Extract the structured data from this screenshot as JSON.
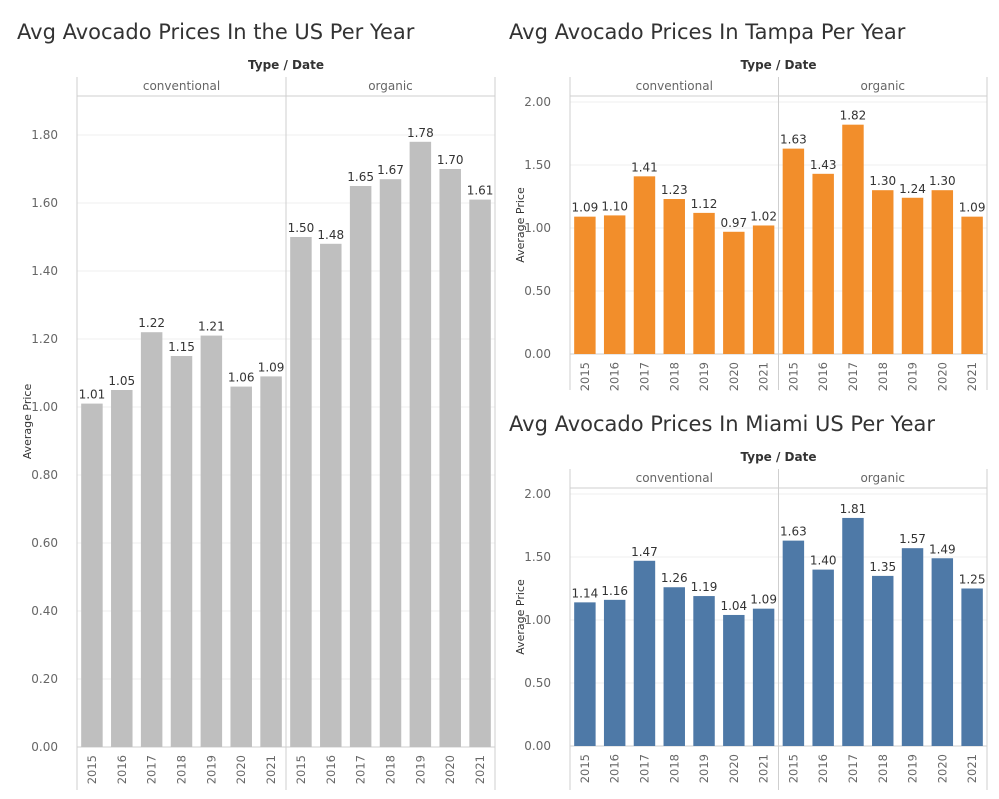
{
  "chart_data": [
    {
      "type": "bar",
      "title": "Avg Avocado Prices In the US Per Year",
      "header_label": "Type / Date",
      "ylabel": "Average Price",
      "ylim": [
        0,
        2.0
      ],
      "yticks": [
        "0.00",
        "0.20",
        "0.40",
        "0.60",
        "0.80",
        "1.00",
        "1.20",
        "1.40",
        "1.60",
        "1.80"
      ],
      "color": "#bfbfbf",
      "groups": [
        {
          "name": "conventional",
          "categories": [
            "2015",
            "2016",
            "2017",
            "2018",
            "2019",
            "2020",
            "2021"
          ],
          "values": [
            1.01,
            1.05,
            1.22,
            1.15,
            1.21,
            1.06,
            1.09
          ],
          "labels": [
            "1.01",
            "1.05",
            "1.22",
            "1.15",
            "1.21",
            "1.06",
            "1.09"
          ]
        },
        {
          "name": "organic",
          "categories": [
            "2015",
            "2016",
            "2017",
            "2018",
            "2019",
            "2020",
            "2021"
          ],
          "values": [
            1.5,
            1.48,
            1.65,
            1.67,
            1.78,
            1.7,
            1.61
          ],
          "labels": [
            "1.50",
            "1.48",
            "1.65",
            "1.67",
            "1.78",
            "1.70",
            "1.61"
          ]
        }
      ]
    },
    {
      "type": "bar",
      "title": "Avg Avocado Prices In Tampa Per Year",
      "header_label": "Type / Date",
      "ylabel": "Average Price",
      "ylim": [
        0,
        2.1
      ],
      "yticks": [
        "0.00",
        "0.50",
        "1.00",
        "1.50",
        "2.00"
      ],
      "color": "#f28e2b",
      "groups": [
        {
          "name": "conventional",
          "categories": [
            "2015",
            "2016",
            "2017",
            "2018",
            "2019",
            "2020",
            "2021"
          ],
          "values": [
            1.09,
            1.1,
            1.41,
            1.23,
            1.12,
            0.97,
            1.02
          ],
          "labels": [
            "1.09",
            "1.10",
            "1.41",
            "1.23",
            "1.12",
            "0.97",
            "1.02"
          ]
        },
        {
          "name": "organic",
          "categories": [
            "2015",
            "2016",
            "2017",
            "2018",
            "2019",
            "2020",
            "2021"
          ],
          "values": [
            1.63,
            1.43,
            1.82,
            1.3,
            1.24,
            1.3,
            1.09
          ],
          "labels": [
            "1.63",
            "1.43",
            "1.82",
            "1.30",
            "1.24",
            "1.30",
            "1.09"
          ]
        }
      ]
    },
    {
      "type": "bar",
      "title": "Avg Avocado Prices In Miami US Per Year",
      "header_label": "Type / Date",
      "ylabel": "Average Price",
      "ylim": [
        0,
        2.1
      ],
      "yticks": [
        "0.00",
        "0.50",
        "1.00",
        "1.50",
        "2.00"
      ],
      "color": "#4e79a7",
      "groups": [
        {
          "name": "conventional",
          "categories": [
            "2015",
            "2016",
            "2017",
            "2018",
            "2019",
            "2020",
            "2021"
          ],
          "values": [
            1.14,
            1.16,
            1.47,
            1.26,
            1.19,
            1.04,
            1.09
          ],
          "labels": [
            "1.14",
            "1.16",
            "1.47",
            "1.26",
            "1.19",
            "1.04",
            "1.09"
          ]
        },
        {
          "name": "organic",
          "categories": [
            "2015",
            "2016",
            "2017",
            "2018",
            "2019",
            "2020",
            "2021"
          ],
          "values": [
            1.63,
            1.4,
            1.81,
            1.35,
            1.57,
            1.49,
            1.25
          ],
          "labels": [
            "1.63",
            "1.40",
            "1.81",
            "1.35",
            "1.57",
            "1.49",
            "1.25"
          ]
        }
      ]
    }
  ]
}
